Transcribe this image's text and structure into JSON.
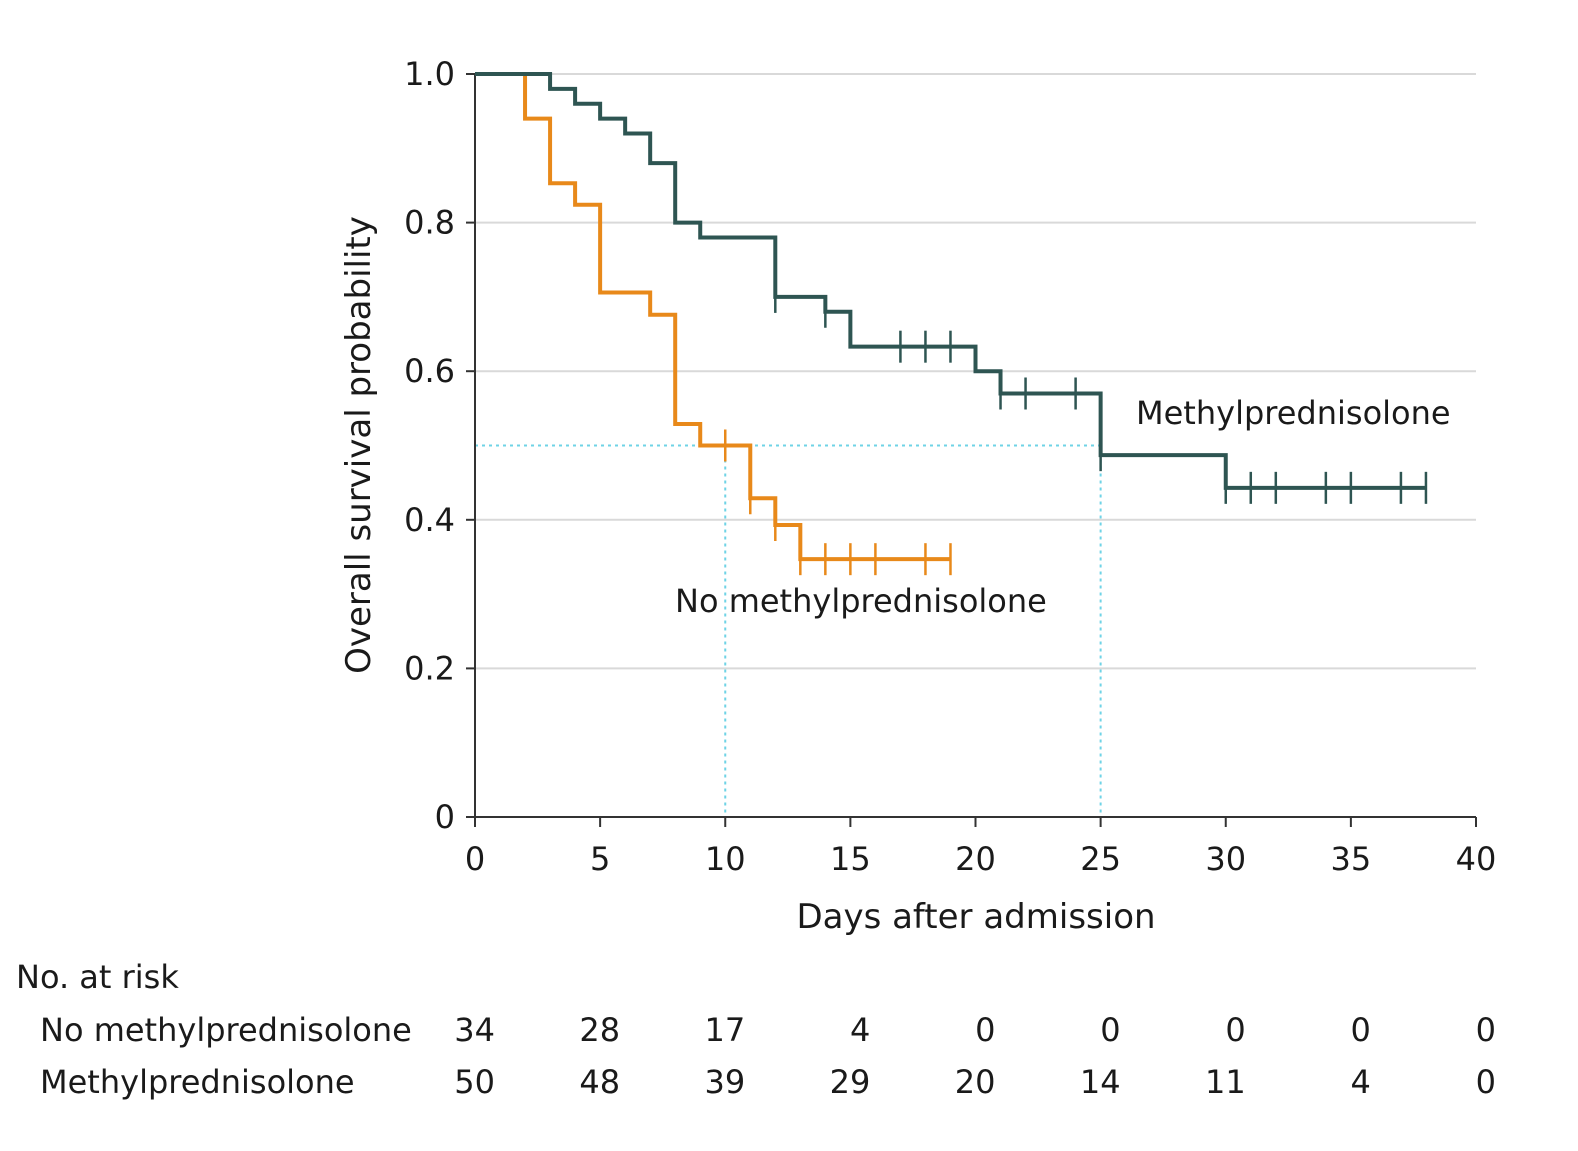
{
  "chart_data": {
    "type": "line",
    "subtype": "kaplan-meier-step",
    "xlabel": "Days after admission",
    "ylabel": "Overall survival probability",
    "xlim": [
      0,
      40
    ],
    "ylim": [
      0,
      1.0
    ],
    "xticks": [
      0,
      5,
      10,
      15,
      20,
      25,
      30,
      35,
      40
    ],
    "yticks": [
      0,
      0.2,
      0.4,
      0.6,
      0.8,
      1.0
    ],
    "ytick_labels": [
      "0",
      "0.2",
      "0.4",
      "0.6",
      "0.8",
      "1.0"
    ],
    "grid": "horizontal",
    "colors": {
      "no_methylprednisolone": "#e8891a",
      "methylprednisolone": "#2e5552",
      "median_reference": "#6fd3e6",
      "grid": "#d9d9d9",
      "axis": "#333333"
    },
    "median_reference": {
      "y": 0.5,
      "x_values": [
        10,
        25
      ]
    },
    "series": [
      {
        "name": "No methylprednisolone",
        "label": "No methylprednisolone",
        "steps": [
          [
            0,
            1.0
          ],
          [
            2,
            0.94
          ],
          [
            3,
            0.853
          ],
          [
            4,
            0.824
          ],
          [
            5,
            0.706
          ],
          [
            7,
            0.676
          ],
          [
            8,
            0.529
          ],
          [
            9,
            0.5
          ],
          [
            11,
            0.429
          ],
          [
            12,
            0.393
          ],
          [
            13,
            0.347
          ]
        ],
        "end_x": 19,
        "censored": [
          [
            10,
            0.5
          ],
          [
            11,
            0.429
          ],
          [
            12,
            0.393
          ],
          [
            13,
            0.347
          ],
          [
            14,
            0.347
          ],
          [
            15,
            0.347
          ],
          [
            16,
            0.347
          ],
          [
            18,
            0.347
          ],
          [
            19,
            0.347
          ]
        ]
      },
      {
        "name": "Methylprednisolone",
        "label": "Methylprednisolone",
        "steps": [
          [
            0,
            1.0
          ],
          [
            3,
            0.98
          ],
          [
            4,
            0.96
          ],
          [
            5,
            0.94
          ],
          [
            6,
            0.92
          ],
          [
            7,
            0.88
          ],
          [
            8,
            0.8
          ],
          [
            9,
            0.78
          ],
          [
            12,
            0.7
          ],
          [
            14,
            0.68
          ],
          [
            15,
            0.633
          ],
          [
            20,
            0.6
          ],
          [
            21,
            0.57
          ],
          [
            25,
            0.487
          ],
          [
            30,
            0.443
          ]
        ],
        "end_x": 38,
        "censored": [
          [
            12,
            0.7
          ],
          [
            14,
            0.68
          ],
          [
            17,
            0.633
          ],
          [
            18,
            0.633
          ],
          [
            19,
            0.633
          ],
          [
            21,
            0.57
          ],
          [
            22,
            0.57
          ],
          [
            24,
            0.57
          ],
          [
            25,
            0.487
          ],
          [
            30,
            0.443
          ],
          [
            31,
            0.443
          ],
          [
            32,
            0.443
          ],
          [
            34,
            0.443
          ],
          [
            35,
            0.443
          ],
          [
            37,
            0.443
          ],
          [
            38,
            0.443
          ]
        ]
      }
    ],
    "risk_table": {
      "title": "No. at risk",
      "times": [
        0,
        5,
        10,
        15,
        20,
        25,
        30,
        35,
        40
      ],
      "rows": [
        {
          "label": "No methylprednisolone",
          "values": [
            "34",
            "28",
            "17",
            "4",
            "0",
            "0",
            "0",
            "0",
            "0"
          ]
        },
        {
          "label": "Methylprednisolone",
          "values": [
            "50",
            "48",
            "39",
            "29",
            "20",
            "14",
            "11",
            "4",
            "0"
          ]
        }
      ]
    }
  }
}
